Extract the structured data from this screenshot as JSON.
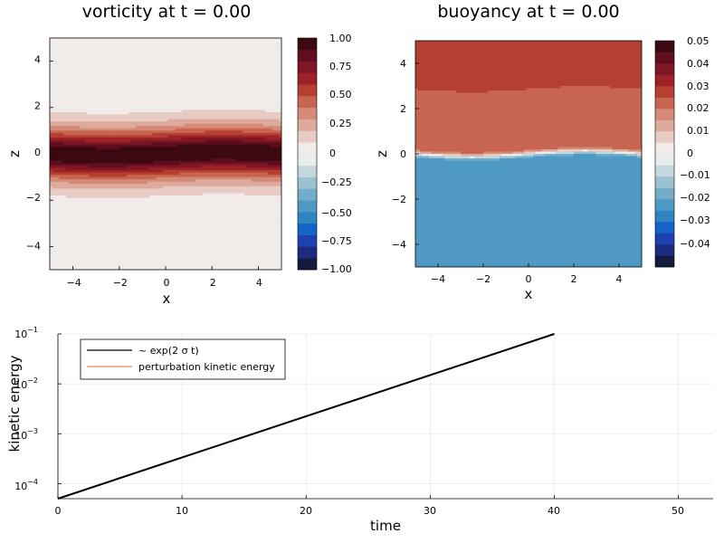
{
  "chart_data": [
    {
      "type": "heatmap",
      "title": "vorticity at t = 0.00",
      "xlabel": "x",
      "ylabel": "z",
      "xlim": [
        -5,
        5
      ],
      "ylim": [
        -5,
        5
      ],
      "xticks": [
        "−4",
        "−2",
        "0",
        "2",
        "4"
      ],
      "yticks": [
        "−4",
        "−2",
        "0",
        "2",
        "4"
      ],
      "colorbar": {
        "range": [
          -1.0,
          1.0
        ],
        "ticks": [
          "1.00",
          "0.75",
          "0.50",
          "0.25",
          "0",
          "−0.25",
          "−0.50",
          "−0.75",
          "−1.00"
        ],
        "levels": 20
      },
      "field": "shear layer: positive vorticity band centred near z = 0 with weak x undulation, ~0 elsewhere"
    },
    {
      "type": "heatmap",
      "title": "buoyancy at t = 0.00",
      "xlabel": "x",
      "ylabel": "z",
      "xlim": [
        -5,
        5
      ],
      "ylim": [
        -5,
        5
      ],
      "xticks": [
        "−4",
        "−2",
        "0",
        "2",
        "4"
      ],
      "yticks": [
        "−4",
        "−2",
        "0",
        "2",
        "4"
      ],
      "colorbar": {
        "range": [
          -0.05,
          0.05
        ],
        "ticks": [
          "0.05",
          "0.04",
          "0.03",
          "0.02",
          "0.01",
          "0",
          "−0.01",
          "−0.02",
          "−0.03",
          "−0.04"
        ],
        "levels": 20
      },
      "field": "upper half ~0.025, lower half ~-0.025, sharp interface near z = 0"
    },
    {
      "type": "line",
      "xlabel": "time",
      "ylabel": "kinetic energy",
      "yscale": "log",
      "xlim": [
        0,
        52.8
      ],
      "ylim": [
        5e-05,
        0.1
      ],
      "xticks": [
        "0",
        "10",
        "20",
        "30",
        "40",
        "50"
      ],
      "yticks": [
        {
          "base": "10",
          "exp": "−1"
        },
        {
          "base": "10",
          "exp": "−2"
        },
        {
          "base": "10",
          "exp": "−3"
        },
        {
          "base": "10",
          "exp": "−4"
        }
      ],
      "legend": "top-left",
      "series": [
        {
          "name": "~ exp(2 σ t)",
          "color": "#000000",
          "x": [
            0,
            40
          ],
          "y": [
            5e-05,
            0.1
          ]
        },
        {
          "name": "perturbation kinetic energy",
          "color": "#e26f46",
          "x": [],
          "y": []
        }
      ]
    }
  ],
  "colors": {
    "balance": [
      "#141b3e",
      "#1c2a80",
      "#1f41b0",
      "#1464c8",
      "#2d85c1",
      "#4e9ac4",
      "#74adc9",
      "#9bc2d1",
      "#c2d8de",
      "#e8eceb",
      "#f1ebe9",
      "#e8ccc4",
      "#deaa9c",
      "#d48a76",
      "#c76550",
      "#b53f31",
      "#9d2228",
      "#7f1625",
      "#5f0e1e",
      "#3c0913"
    ]
  }
}
